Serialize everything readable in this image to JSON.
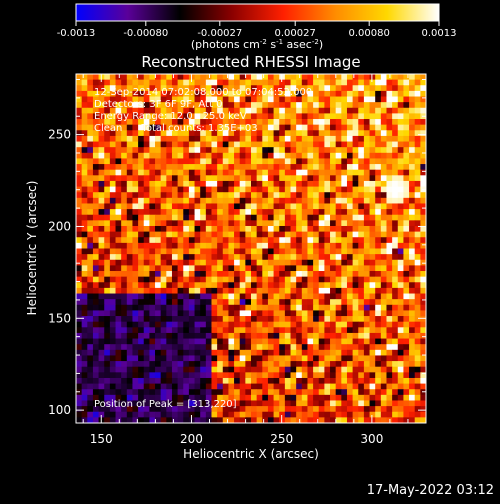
{
  "chart_data": {
    "type": "heatmap",
    "title": "Reconstructed RHESSI Image",
    "colorbar": {
      "min": -0.0013,
      "max": 0.0013,
      "tick_labels": [
        "-0.0013",
        "-0.00080",
        "-0.00027",
        "0.00027",
        "0.00080",
        "0.0013"
      ],
      "tick_values": [
        -0.0013,
        -0.0008,
        -0.00027,
        0.00027,
        0.0008,
        0.0013
      ],
      "unit_label": "(photons cm",
      "unit_exp1": "-2",
      "unit_mid": " s",
      "unit_exp2": "-1",
      "unit_mid2": " asec",
      "unit_exp3": "-2",
      "unit_end": ")",
      "colors": [
        "#0000ff",
        "#5a0099",
        "#000000",
        "#8a0000",
        "#ff2000",
        "#ff8c00",
        "#ffd800",
        "#ffffff"
      ]
    },
    "xlabel": "Heliocentric X (arcsec)",
    "ylabel": "Heliocentric Y (arcsec)",
    "xlim": [
      136,
      330
    ],
    "ylim": [
      93,
      283
    ],
    "xticks": [
      150,
      200,
      250,
      300
    ],
    "yticks": [
      100,
      150,
      200,
      250
    ],
    "annotations": [
      "12-Sep-2014 07:02:08.000 to 07:04:52.000",
      "Detectors: 3F 6F 9F, Att 0",
      "Energy Range: 12.0 - 25.0 keV",
      "Clean      Total counts: 1.35E+03"
    ],
    "peak_label": "Position of Peak = [313,220]",
    "peak": [
      313,
      220
    ],
    "grid": false
  },
  "footer": {
    "timestamp": "17-May-2022 03:12"
  }
}
